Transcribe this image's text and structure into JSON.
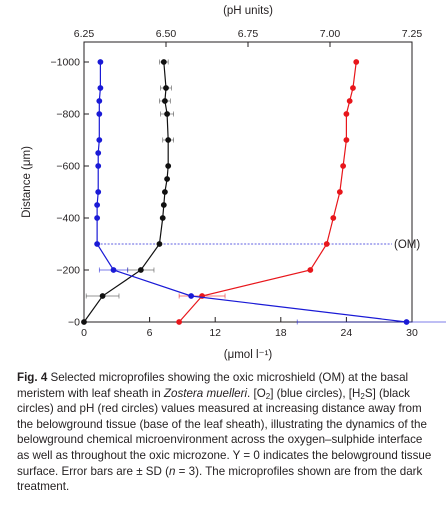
{
  "chart_data": {
    "type": "scatter",
    "title": "",
    "xlabel": "(μmol l⁻¹)",
    "x2label": "(pH units)",
    "ylabel": "Distance (μm)",
    "xlim": [
      0,
      30
    ],
    "x2lim": [
      6.25,
      7.25
    ],
    "ylim": [
      -1000,
      0
    ],
    "y_display": "inverted",
    "xticks": [
      0,
      6,
      12,
      18,
      24,
      30
    ],
    "x2ticks": [
      6.25,
      6.5,
      6.75,
      7.0,
      7.25
    ],
    "x2tick_labels": [
      "6.25",
      "6.50",
      "6.75",
      "7.00",
      "7.25"
    ],
    "yticks": [
      -1000,
      -800,
      -600,
      -400,
      -200,
      0
    ],
    "ytick_labels": [
      "−1000",
      "−800",
      "−600",
      "−400",
      "−200",
      "−0"
    ],
    "grid": false,
    "legend": false,
    "annotation": {
      "label": "(OM)",
      "y": -300
    },
    "series": [
      {
        "key": "o2",
        "axis": "bottom",
        "color": "#1a1ad6",
        "x": [
          29.5,
          9.8,
          2.7,
          1.2,
          1.2,
          1.2,
          1.3,
          1.3,
          1.3,
          1.4,
          1.4,
          1.4,
          1.5,
          1.5
        ],
        "y": [
          0,
          -100,
          -200,
          -300,
          -400,
          -450,
          -500,
          -600,
          -650,
          -700,
          -800,
          -850,
          -900,
          -1000
        ],
        "err": [
          10,
          0,
          1.3,
          0,
          0,
          0,
          0,
          0,
          0,
          0,
          0,
          0,
          0,
          0
        ]
      },
      {
        "key": "h2s",
        "axis": "bottom",
        "color": "#111111",
        "x": [
          0.0,
          1.7,
          5.2,
          6.9,
          7.2,
          7.3,
          7.4,
          7.6,
          7.7,
          7.7,
          7.6,
          7.4,
          7.5,
          7.3
        ],
        "y": [
          0,
          -100,
          -200,
          -300,
          -400,
          -450,
          -500,
          -550,
          -600,
          -700,
          -800,
          -850,
          -900,
          -1000
        ],
        "err": [
          0,
          1.5,
          1.2,
          0,
          0,
          0,
          0,
          0,
          0,
          0.5,
          0.6,
          0.5,
          0.5,
          0.4
        ]
      },
      {
        "key": "ph",
        "axis": "top",
        "color": "#e8161b",
        "x": [
          6.54,
          6.61,
          6.94,
          6.99,
          7.01,
          7.03,
          7.04,
          7.05,
          7.05,
          7.06,
          7.07,
          7.08
        ],
        "y": [
          0,
          -100,
          -200,
          -300,
          -400,
          -500,
          -600,
          -700,
          -800,
          -850,
          -900,
          -1000
        ],
        "err": [
          0,
          0.07,
          0,
          0,
          0,
          0,
          0,
          0,
          0,
          0,
          0,
          0
        ]
      }
    ]
  },
  "caption": {
    "fig_label": "Fig. 4",
    "pre_italic": " Selected microprofiles showing the oxic microshield (OM) at the basal meristem with leaf sheath in ",
    "species": "Zostera muelleri",
    "o2_open": ". [O",
    "o2_sub": "2",
    "o2_close": "] (blue circles), [H",
    "h2s_sub": "2",
    "h2s_close": "S] (black circles) and pH (red circles) values measured at increasing distance away from the belowground tissue (base of the leaf sheath), illustrating the dynamics of the belowground chemical microenvironment across the oxygen–sulphide interface as well as throughout the oxic microzone. Y = 0 indicates the belowground tissue surface. Error bars are ± SD (",
    "n_symbol": "n",
    "post_n": " = 3). The microprofiles shown are from the dark treatment."
  }
}
